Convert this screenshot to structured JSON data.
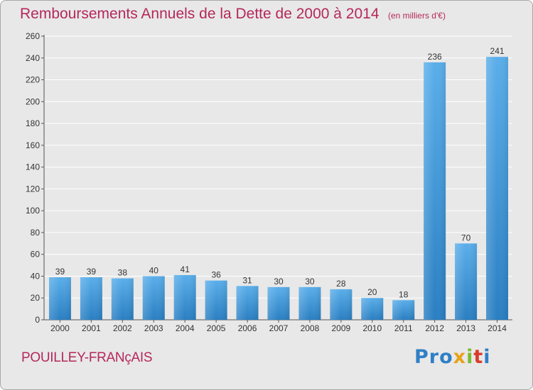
{
  "header": {
    "title": "Remboursements Annuels de la Dette de 2000 à 2014",
    "subtitle": "(en milliers d'€)"
  },
  "footer": {
    "commune": "POUILLEY-FRANçAIS",
    "logo_parts": [
      "Pro",
      "x",
      "i",
      "t",
      "i"
    ]
  },
  "colors": {
    "title": "#b5285a",
    "bar_light": "#5aaeea",
    "bar_dark": "#2a7fc2",
    "background": "#e8e8e8"
  },
  "chart_data": {
    "type": "bar",
    "title": "Remboursements Annuels de la Dette de 2000 à 2014",
    "xlabel": "",
    "ylabel": "",
    "categories": [
      "2000",
      "2001",
      "2002",
      "2003",
      "2004",
      "2005",
      "2006",
      "2007",
      "2008",
      "2009",
      "2010",
      "2011",
      "2012",
      "2013",
      "2014"
    ],
    "values": [
      39,
      39,
      38,
      40,
      41,
      36,
      31,
      30,
      30,
      28,
      20,
      18,
      236,
      70,
      241
    ],
    "ylim": [
      0,
      260
    ],
    "yticks": [
      0,
      20,
      40,
      60,
      80,
      100,
      120,
      140,
      160,
      180,
      200,
      220,
      240,
      260
    ],
    "grid": true,
    "data_labels": true
  }
}
